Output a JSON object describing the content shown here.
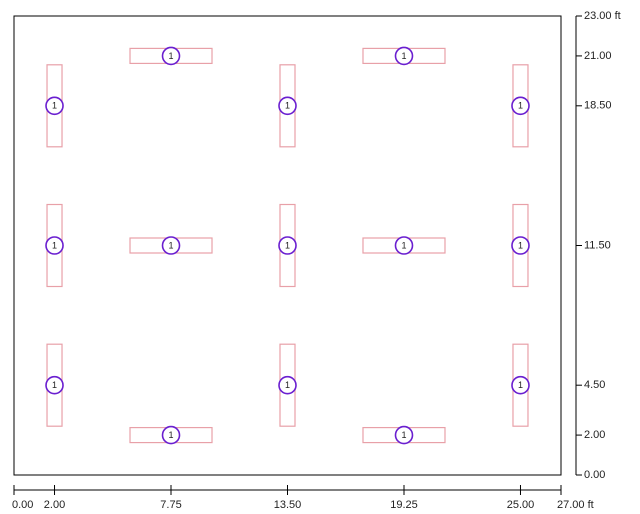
{
  "chart_data": {
    "type": "scatter",
    "xlim": [
      0,
      27
    ],
    "ylim": [
      0,
      23
    ],
    "xticks": [
      {
        "value": 0,
        "label": "0.00"
      },
      {
        "value": 2,
        "label": "2.00"
      },
      {
        "value": 7.75,
        "label": "7.75"
      },
      {
        "value": 13.5,
        "label": "13.50"
      },
      {
        "value": 19.25,
        "label": "19.25"
      },
      {
        "value": 25,
        "label": "25.00"
      },
      {
        "value": 27,
        "label": "27.00 ft"
      }
    ],
    "yticks": [
      {
        "value": 0,
        "label": "0.00"
      },
      {
        "value": 2,
        "label": "2.00"
      },
      {
        "value": 4.5,
        "label": "4.50"
      },
      {
        "value": 11.5,
        "label": "11.50"
      },
      {
        "value": 18.5,
        "label": "18.50"
      },
      {
        "value": 21,
        "label": "21.00"
      },
      {
        "value": 23,
        "label": "23.00 ft"
      }
    ],
    "color": "#6a1fd0",
    "fixture_color": "#e8a0a8",
    "points": [
      {
        "x": 2,
        "y": 4.5,
        "orientation": "vertical",
        "label": "1"
      },
      {
        "x": 2,
        "y": 11.5,
        "orientation": "vertical",
        "label": "1"
      },
      {
        "x": 2,
        "y": 18.5,
        "orientation": "vertical",
        "label": "1"
      },
      {
        "x": 7.75,
        "y": 2,
        "orientation": "horizontal",
        "label": "1"
      },
      {
        "x": 7.75,
        "y": 11.5,
        "orientation": "horizontal",
        "label": "1"
      },
      {
        "x": 7.75,
        "y": 21,
        "orientation": "horizontal",
        "label": "1"
      },
      {
        "x": 13.5,
        "y": 4.5,
        "orientation": "vertical",
        "label": "1"
      },
      {
        "x": 13.5,
        "y": 11.5,
        "orientation": "vertical",
        "label": "1"
      },
      {
        "x": 13.5,
        "y": 18.5,
        "orientation": "vertical",
        "label": "1"
      },
      {
        "x": 19.25,
        "y": 2,
        "orientation": "horizontal",
        "label": "1"
      },
      {
        "x": 19.25,
        "y": 11.5,
        "orientation": "horizontal",
        "label": "1"
      },
      {
        "x": 19.25,
        "y": 21,
        "orientation": "horizontal",
        "label": "1"
      },
      {
        "x": 25,
        "y": 4.5,
        "orientation": "vertical",
        "label": "1"
      },
      {
        "x": 25,
        "y": 11.5,
        "orientation": "vertical",
        "label": "1"
      },
      {
        "x": 25,
        "y": 18.5,
        "orientation": "vertical",
        "label": "1"
      }
    ]
  }
}
